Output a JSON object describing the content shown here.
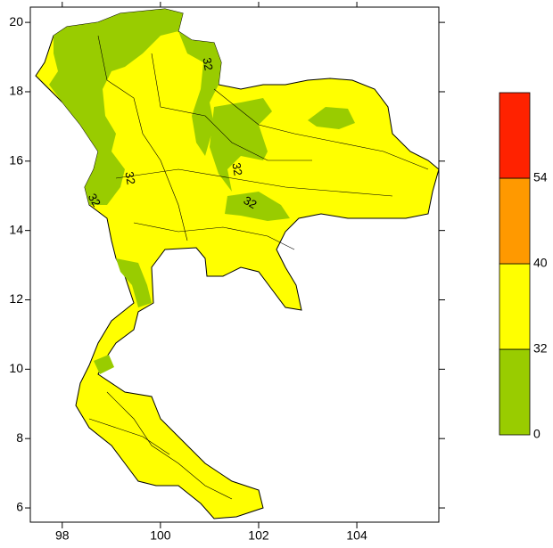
{
  "map": {
    "lon_axis": {
      "lim": [
        97.35,
        105.67
      ],
      "ticks": [
        98,
        100,
        102,
        104
      ]
    },
    "lat_axis": {
      "lim": [
        5.59,
        20.44
      ],
      "ticks": [
        6,
        8,
        10,
        12,
        14,
        16,
        18,
        20
      ]
    },
    "colorbar": {
      "levels": [
        0,
        32,
        40,
        54
      ],
      "colors": [
        "#99cc00",
        "#ffff00",
        "#ff9900",
        "#ff2200"
      ]
    },
    "contour_labels": [
      "32",
      "32",
      "32",
      "32",
      "32"
    ]
  }
}
